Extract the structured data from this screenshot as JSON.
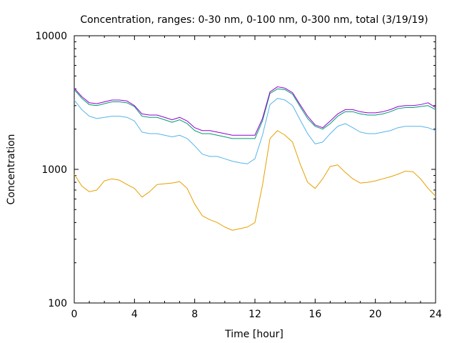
{
  "chart_data": {
    "type": "line",
    "title": "Concentration, ranges: 0-30 nm, 0-100 nm, 0-300 nm, total (3/19/19)",
    "xlabel": "Time [hour]",
    "ylabel": "Concentration",
    "xlim": [
      0,
      24
    ],
    "ylim": [
      100,
      10000
    ],
    "yscale": "log",
    "grid": false,
    "legend": "none",
    "x_ticks": [
      0,
      4,
      8,
      12,
      16,
      20,
      24
    ],
    "x_tick_labels": [
      "0",
      "4",
      "8",
      "12",
      "16",
      "20",
      "24"
    ],
    "y_ticks": [
      100,
      1000,
      10000
    ],
    "y_tick_labels": [
      "100",
      "1000",
      "10000"
    ],
    "x": [
      0,
      0.5,
      1,
      1.5,
      2,
      2.5,
      3,
      3.5,
      4,
      4.5,
      5,
      5.5,
      6,
      6.5,
      7,
      7.5,
      8,
      8.5,
      9,
      9.5,
      10,
      10.5,
      11,
      11.5,
      12,
      12.5,
      13,
      13.5,
      14,
      14.5,
      15,
      15.5,
      16,
      16.5,
      17,
      17.5,
      18,
      18.5,
      19,
      19.5,
      20,
      20.5,
      21,
      21.5,
      22,
      22.5,
      23,
      23.5,
      24
    ],
    "series": [
      {
        "color": "#9400d3",
        "values": [
          4050,
          3500,
          3150,
          3100,
          3200,
          3300,
          3300,
          3250,
          3000,
          2600,
          2550,
          2550,
          2450,
          2350,
          2450,
          2300,
          2050,
          1950,
          1950,
          1900,
          1850,
          1800,
          1800,
          1800,
          1800,
          2400,
          3800,
          4150,
          4050,
          3750,
          3050,
          2500,
          2150,
          2050,
          2300,
          2600,
          2800,
          2800,
          2700,
          2650,
          2650,
          2700,
          2800,
          2950,
          3000,
          3000,
          3050,
          3150,
          2900
        ]
      },
      {
        "color": "#009e73",
        "values": [
          3950,
          3400,
          3050,
          3000,
          3100,
          3200,
          3200,
          3150,
          2950,
          2500,
          2450,
          2450,
          2350,
          2250,
          2350,
          2200,
          1950,
          1850,
          1850,
          1800,
          1750,
          1700,
          1700,
          1700,
          1700,
          2300,
          3700,
          4000,
          3950,
          3650,
          2950,
          2400,
          2100,
          2000,
          2200,
          2500,
          2700,
          2700,
          2600,
          2550,
          2550,
          2600,
          2700,
          2850,
          2900,
          2900,
          2950,
          3000,
          2800
        ]
      },
      {
        "color": "#56b4e9",
        "values": [
          3300,
          2800,
          2500,
          2400,
          2450,
          2500,
          2500,
          2450,
          2300,
          1900,
          1850,
          1850,
          1800,
          1750,
          1800,
          1700,
          1500,
          1300,
          1250,
          1250,
          1200,
          1150,
          1120,
          1100,
          1200,
          1800,
          3050,
          3400,
          3300,
          3000,
          2350,
          1850,
          1550,
          1600,
          1850,
          2100,
          2200,
          2050,
          1900,
          1850,
          1850,
          1900,
          1950,
          2050,
          2100,
          2100,
          2100,
          2050,
          1950
        ]
      },
      {
        "color": "#e69f00",
        "values": [
          920,
          750,
          680,
          700,
          820,
          850,
          830,
          770,
          720,
          620,
          680,
          770,
          780,
          790,
          810,
          720,
          550,
          450,
          420,
          400,
          370,
          350,
          360,
          370,
          400,
          760,
          1700,
          1950,
          1800,
          1600,
          1100,
          800,
          720,
          850,
          1050,
          1080,
          950,
          850,
          790,
          800,
          820,
          850,
          880,
          920,
          970,
          960,
          850,
          720,
          630
        ]
      }
    ]
  }
}
